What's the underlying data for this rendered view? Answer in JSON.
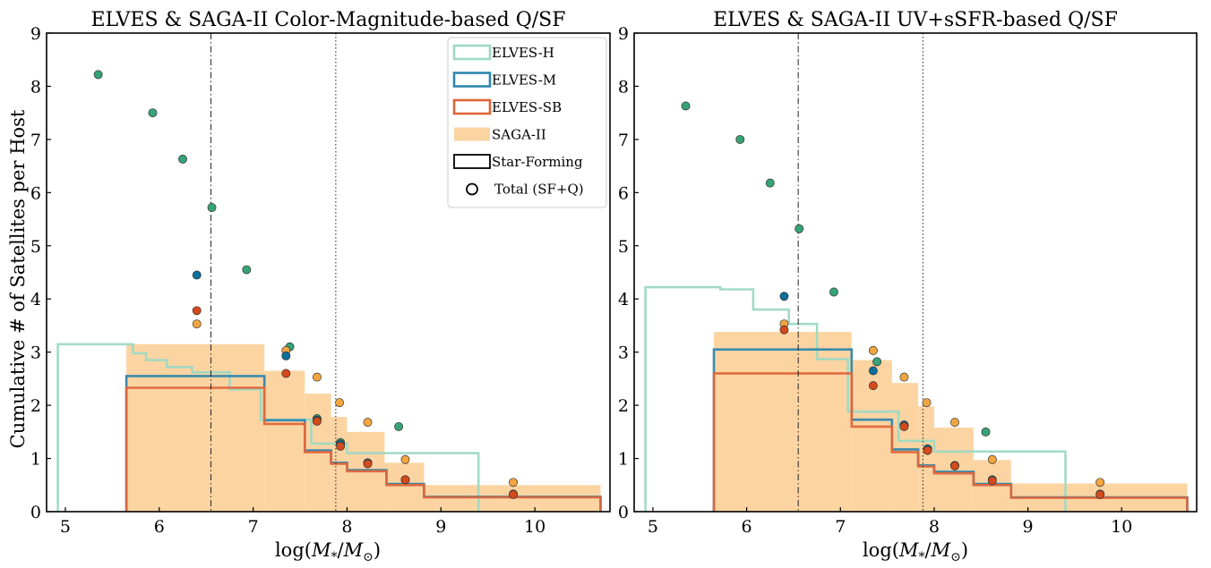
{
  "figure": {
    "ylabel": "Cumulative # of Satellites per Host",
    "xlabel": "log(M*/M⊙)",
    "xlabel_main": "log(",
    "xlabel_M": "M",
    "xlabel_sub_star": "*",
    "xlabel_slash": "/",
    "xlabel_sub_sun": "⊙",
    "xlabel_close": ")"
  },
  "colors": {
    "elves_h": "#9dd9c3",
    "elves_m": "#2f86ad",
    "elves_sb": "#e0653a",
    "saga_fill": "#fcd4a2",
    "total_h": "#36a376",
    "total_m": "#0d6f9c",
    "total_sb": "#d44a1c",
    "total_saga": "#f3a540"
  },
  "legend": [
    {
      "key": "elves_h",
      "label": "ELVES-H",
      "style": "outline"
    },
    {
      "key": "elves_m",
      "label": "ELVES-M",
      "style": "outline"
    },
    {
      "key": "elves_sb",
      "label": "ELVES-SB",
      "style": "outline"
    },
    {
      "key": "saga",
      "label": "SAGA-II",
      "style": "fill"
    },
    {
      "key": "sf",
      "label": "Star-Forming",
      "style": "outline-black"
    },
    {
      "key": "total",
      "label": "Total (SF+Q)",
      "style": "circle"
    }
  ],
  "chart_data": [
    {
      "type": "step",
      "title": "ELVES & SAGA-II Color-Magnitude-based Q/SF",
      "xlim": [
        4.8,
        10.8
      ],
      "ylim": [
        0,
        9
      ],
      "xticks": [
        5,
        6,
        7,
        8,
        9,
        10
      ],
      "yticks": [
        0,
        1,
        2,
        3,
        4,
        5,
        6,
        7,
        8,
        9
      ],
      "vlines": [
        {
          "x": 6.55,
          "style": "dashdot"
        },
        {
          "x": 7.88,
          "style": "dotted"
        }
      ],
      "saga_sf": [
        {
          "x0": 5.65,
          "x1": 7.12,
          "y": 3.15
        },
        {
          "x0": 7.12,
          "x1": 7.55,
          "y": 2.65
        },
        {
          "x0": 7.55,
          "x1": 7.83,
          "y": 2.22
        },
        {
          "x0": 7.83,
          "x1": 8.0,
          "y": 1.78
        },
        {
          "x0": 8.0,
          "x1": 8.4,
          "y": 1.5
        },
        {
          "x0": 8.4,
          "x1": 8.82,
          "y": 0.92
        },
        {
          "x0": 8.82,
          "x1": 10.7,
          "y": 0.5
        }
      ],
      "series": [
        {
          "name": "ELVES-H",
          "key": "elves_h",
          "x": [
            4.92,
            4.92,
            5.72,
            5.72,
            5.86,
            5.86,
            6.08,
            6.08,
            6.35,
            6.35,
            6.75,
            6.75,
            7.08,
            7.08,
            7.62,
            7.62,
            8.0,
            8.0,
            9.4,
            9.4
          ],
          "y": [
            0,
            3.15,
            3.15,
            2.98,
            2.98,
            2.85,
            2.85,
            2.72,
            2.72,
            2.62,
            2.62,
            2.3,
            2.3,
            1.73,
            1.73,
            1.28,
            1.28,
            1.1,
            1.1,
            0
          ]
        },
        {
          "name": "ELVES-M",
          "key": "elves_m",
          "x": [
            5.65,
            5.65,
            7.12,
            7.12,
            7.55,
            7.55,
            7.83,
            7.83,
            8.0,
            8.0,
            8.42,
            8.42,
            8.82,
            8.82,
            10.7,
            10.7
          ],
          "y": [
            0,
            2.55,
            2.55,
            1.72,
            1.72,
            1.15,
            1.15,
            0.92,
            0.92,
            0.78,
            0.78,
            0.52,
            0.52,
            0.28,
            0.28,
            0
          ]
        },
        {
          "name": "ELVES-SB",
          "key": "elves_sb",
          "x": [
            5.65,
            5.65,
            7.12,
            7.12,
            7.55,
            7.55,
            7.83,
            7.83,
            8.0,
            8.0,
            8.42,
            8.42,
            8.82,
            8.82,
            10.7,
            10.7
          ],
          "y": [
            0,
            2.33,
            2.33,
            1.65,
            1.65,
            1.12,
            1.12,
            0.9,
            0.9,
            0.76,
            0.76,
            0.5,
            0.5,
            0.27,
            0.27,
            0
          ]
        }
      ],
      "totals": [
        {
          "key": "total_h",
          "points": [
            [
              5.35,
              8.22
            ],
            [
              5.93,
              7.5
            ],
            [
              6.25,
              6.63
            ],
            [
              6.56,
              5.72
            ],
            [
              6.93,
              4.55
            ],
            [
              7.39,
              3.1
            ],
            [
              7.68,
              1.75
            ],
            [
              7.93,
              1.3
            ],
            [
              8.55,
              1.6
            ]
          ]
        },
        {
          "key": "total_saga",
          "points": [
            [
              6.4,
              3.53
            ],
            [
              7.35,
              3.03
            ],
            [
              7.68,
              2.53
            ],
            [
              7.92,
              2.05
            ],
            [
              8.22,
              1.68
            ],
            [
              8.62,
              0.98
            ],
            [
              9.77,
              0.55
            ]
          ]
        },
        {
          "key": "total_m",
          "points": [
            [
              6.4,
              4.45
            ],
            [
              7.35,
              2.93
            ],
            [
              7.68,
              1.72
            ],
            [
              7.93,
              1.27
            ],
            [
              8.22,
              0.92
            ],
            [
              8.62,
              0.6
            ],
            [
              9.77,
              0.33
            ]
          ]
        },
        {
          "key": "total_sb",
          "points": [
            [
              6.4,
              3.78
            ],
            [
              7.35,
              2.6
            ],
            [
              7.68,
              1.7
            ],
            [
              7.93,
              1.23
            ],
            [
              8.22,
              0.9
            ],
            [
              8.62,
              0.6
            ],
            [
              9.77,
              0.32
            ]
          ]
        }
      ]
    },
    {
      "type": "step",
      "title": "ELVES & SAGA-II UV+sSFR-based Q/SF",
      "xlim": [
        4.8,
        10.8
      ],
      "ylim": [
        0,
        9
      ],
      "xticks": [
        5,
        6,
        7,
        8,
        9,
        10
      ],
      "yticks": [
        0,
        1,
        2,
        3,
        4,
        5,
        6,
        7,
        8,
        9
      ],
      "vlines": [
        {
          "x": 6.55,
          "style": "dashdot"
        },
        {
          "x": 7.88,
          "style": "dotted"
        }
      ],
      "saga_sf": [
        {
          "x0": 5.65,
          "x1": 7.12,
          "y": 3.38
        },
        {
          "x0": 7.12,
          "x1": 7.55,
          "y": 2.85
        },
        {
          "x0": 7.55,
          "x1": 7.83,
          "y": 2.42
        },
        {
          "x0": 7.83,
          "x1": 8.0,
          "y": 1.98
        },
        {
          "x0": 8.0,
          "x1": 8.42,
          "y": 1.58
        },
        {
          "x0": 8.42,
          "x1": 8.82,
          "y": 0.97
        },
        {
          "x0": 8.82,
          "x1": 10.7,
          "y": 0.53
        }
      ],
      "series": [
        {
          "name": "ELVES-H",
          "key": "elves_h",
          "x": [
            4.92,
            4.92,
            5.72,
            5.72,
            6.07,
            6.07,
            6.45,
            6.45,
            6.75,
            6.75,
            7.08,
            7.08,
            7.62,
            7.62,
            8.0,
            8.0,
            9.4,
            9.4
          ],
          "y": [
            0,
            4.22,
            4.22,
            4.18,
            4.18,
            3.8,
            3.8,
            3.53,
            3.53,
            2.87,
            2.87,
            1.88,
            1.88,
            1.33,
            1.33,
            1.13,
            1.13,
            0
          ]
        },
        {
          "name": "ELVES-M",
          "key": "elves_m",
          "x": [
            5.65,
            5.65,
            7.12,
            7.12,
            7.55,
            7.55,
            7.83,
            7.83,
            8.0,
            8.0,
            8.42,
            8.42,
            8.82,
            8.82,
            10.7,
            10.7
          ],
          "y": [
            0,
            3.05,
            3.05,
            1.73,
            1.73,
            1.17,
            1.17,
            0.87,
            0.87,
            0.75,
            0.75,
            0.52,
            0.52,
            0.27,
            0.27,
            0
          ]
        },
        {
          "name": "ELVES-SB",
          "key": "elves_sb",
          "x": [
            5.65,
            5.65,
            7.12,
            7.12,
            7.55,
            7.55,
            7.83,
            7.83,
            8.0,
            8.0,
            8.42,
            8.42,
            8.82,
            8.82,
            10.7,
            10.7
          ],
          "y": [
            0,
            2.6,
            2.6,
            1.6,
            1.6,
            1.12,
            1.12,
            0.85,
            0.85,
            0.72,
            0.72,
            0.5,
            0.5,
            0.26,
            0.26,
            0
          ]
        }
      ],
      "totals": [
        {
          "key": "total_h",
          "points": [
            [
              5.35,
              7.63
            ],
            [
              5.93,
              7.0
            ],
            [
              6.25,
              6.18
            ],
            [
              6.56,
              5.32
            ],
            [
              6.93,
              4.13
            ],
            [
              7.39,
              2.82
            ],
            [
              7.68,
              1.63
            ],
            [
              7.93,
              1.18
            ],
            [
              8.55,
              1.5
            ]
          ]
        },
        {
          "key": "total_saga",
          "points": [
            [
              6.4,
              3.53
            ],
            [
              7.35,
              3.03
            ],
            [
              7.68,
              2.53
            ],
            [
              7.92,
              2.05
            ],
            [
              8.22,
              1.68
            ],
            [
              8.62,
              0.98
            ],
            [
              9.77,
              0.55
            ]
          ]
        },
        {
          "key": "total_m",
          "points": [
            [
              6.4,
              4.05
            ],
            [
              7.35,
              2.65
            ],
            [
              7.68,
              1.63
            ],
            [
              7.93,
              1.18
            ],
            [
              8.22,
              0.87
            ],
            [
              8.62,
              0.6
            ],
            [
              9.77,
              0.33
            ]
          ]
        },
        {
          "key": "total_sb",
          "points": [
            [
              6.4,
              3.42
            ],
            [
              7.35,
              2.37
            ],
            [
              7.68,
              1.6
            ],
            [
              7.93,
              1.15
            ],
            [
              8.22,
              0.86
            ],
            [
              8.62,
              0.58
            ],
            [
              9.77,
              0.32
            ]
          ]
        }
      ]
    }
  ]
}
